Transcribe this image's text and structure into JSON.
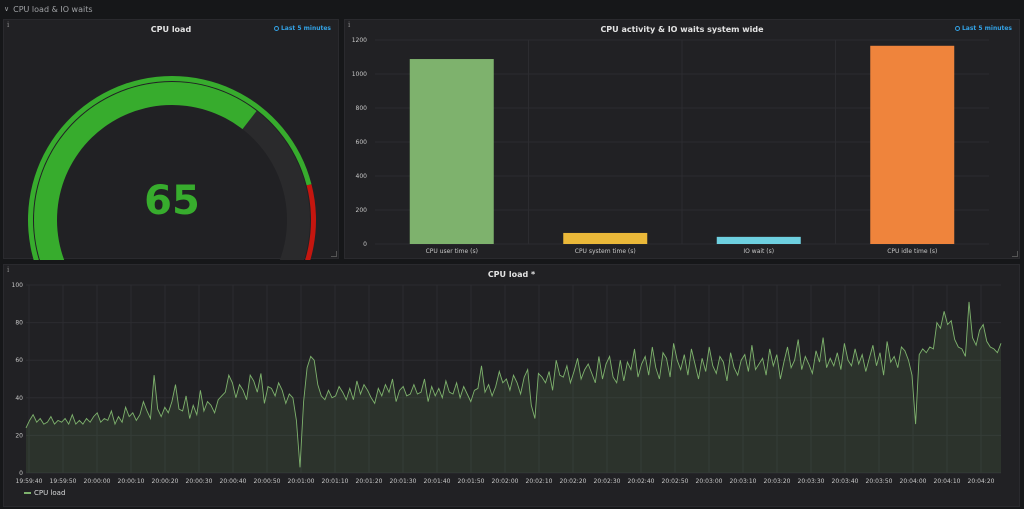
{
  "row": {
    "title": "CPU load & IO waits"
  },
  "gauge_panel": {
    "title": "CPU load",
    "time_range": "Last 5 minutes",
    "value": "65",
    "value_fraction": 0.65,
    "colors": {
      "ok": "#37ac2d",
      "warn_track": "#2a2a2c",
      "critical": "#c4160f"
    }
  },
  "bar_panel": {
    "title": "CPU activity & IO waits system wide",
    "time_range": "Last 5 minutes"
  },
  "line_panel": {
    "title": "CPU load *",
    "legend": "CPU load",
    "series_color": "#7eb26d"
  },
  "chart_data": [
    {
      "type": "bar",
      "title": "CPU activity & IO waits system wide",
      "categories": [
        "CPU user time (s)",
        "CPU system time (s)",
        "IO wait (s)",
        "CPU idle time (s)"
      ],
      "values": [
        1088,
        65,
        42,
        1166
      ],
      "colors": [
        "#7eb26d",
        "#eab839",
        "#6ed0e0",
        "#ef843c"
      ],
      "ylim": [
        0,
        1200
      ],
      "yticks": [
        "0",
        "200",
        "400",
        "600",
        "800",
        "1000",
        "1200"
      ],
      "grid": true
    },
    {
      "type": "line",
      "title": "CPU load *",
      "series": [
        {
          "name": "CPU load"
        }
      ],
      "ylim": [
        0,
        100
      ],
      "yticks": [
        "0",
        "20",
        "40",
        "60",
        "80",
        "100"
      ],
      "xticks": [
        "19:59:40",
        "19:59:50",
        "20:00:00",
        "20:00:10",
        "20:00:20",
        "20:00:30",
        "20:00:40",
        "20:00:50",
        "20:01:00",
        "20:01:10",
        "20:01:20",
        "20:01:30",
        "20:01:40",
        "20:01:50",
        "20:02:00",
        "20:02:10",
        "20:02:20",
        "20:02:30",
        "20:02:40",
        "20:02:50",
        "20:03:00",
        "20:03:10",
        "20:03:20",
        "20:03:30",
        "20:03:40",
        "20:03:50",
        "20:04:00",
        "20:04:10",
        "20:04:20"
      ],
      "y": [
        24,
        28,
        31,
        27,
        29,
        26,
        27,
        30,
        26,
        28,
        27,
        29,
        26,
        31,
        26,
        28,
        26,
        29,
        27,
        30,
        32,
        27,
        29,
        28,
        33,
        26,
        30,
        27,
        35,
        30,
        32,
        28,
        31,
        38,
        33,
        29,
        52,
        34,
        30,
        35,
        32,
        38,
        47,
        34,
        33,
        41,
        29,
        36,
        31,
        44,
        33,
        38,
        36,
        32,
        39,
        41,
        43,
        52,
        48,
        40,
        47,
        44,
        39,
        52,
        49,
        43,
        53,
        37,
        46,
        45,
        41,
        48,
        44,
        37,
        42,
        40,
        28,
        3,
        38,
        56,
        62,
        60,
        47,
        41,
        39,
        44,
        40,
        41,
        46,
        43,
        39,
        45,
        39,
        49,
        42,
        47,
        44,
        40,
        37,
        45,
        41,
        47,
        43,
        50,
        38,
        44,
        46,
        41,
        42,
        47,
        42,
        43,
        50,
        38,
        46,
        41,
        45,
        40,
        49,
        43,
        42,
        48,
        40,
        46,
        42,
        38,
        44,
        45,
        57,
        43,
        47,
        41,
        46,
        54,
        48,
        50,
        44,
        52,
        48,
        42,
        51,
        55,
        36,
        29,
        53,
        51,
        48,
        54,
        44,
        60,
        52,
        51,
        57,
        48,
        54,
        61,
        50,
        55,
        58,
        53,
        48,
        62,
        50,
        58,
        62,
        51,
        48,
        60,
        49,
        59,
        55,
        66,
        51,
        58,
        62,
        52,
        67,
        56,
        50,
        64,
        61,
        51,
        69,
        60,
        55,
        63,
        52,
        66,
        58,
        50,
        61,
        54,
        67,
        57,
        53,
        62,
        59,
        49,
        64,
        56,
        52,
        60,
        63,
        54,
        68,
        55,
        58,
        61,
        52,
        66,
        57,
        63,
        50,
        59,
        67,
        56,
        60,
        71,
        55,
        62,
        58,
        53,
        65,
        59,
        72,
        56,
        61,
        57,
        64,
        55,
        69,
        60,
        57,
        66,
        58,
        63,
        54,
        61,
        68,
        57,
        64,
        52,
        70,
        59,
        62,
        56,
        67,
        65,
        60,
        52,
        26,
        63,
        66,
        64,
        67,
        66,
        80,
        77,
        86,
        79,
        81,
        71,
        67,
        66,
        62,
        91,
        72,
        68,
        76,
        79,
        70,
        67,
        66,
        64,
        69
      ]
    }
  ]
}
